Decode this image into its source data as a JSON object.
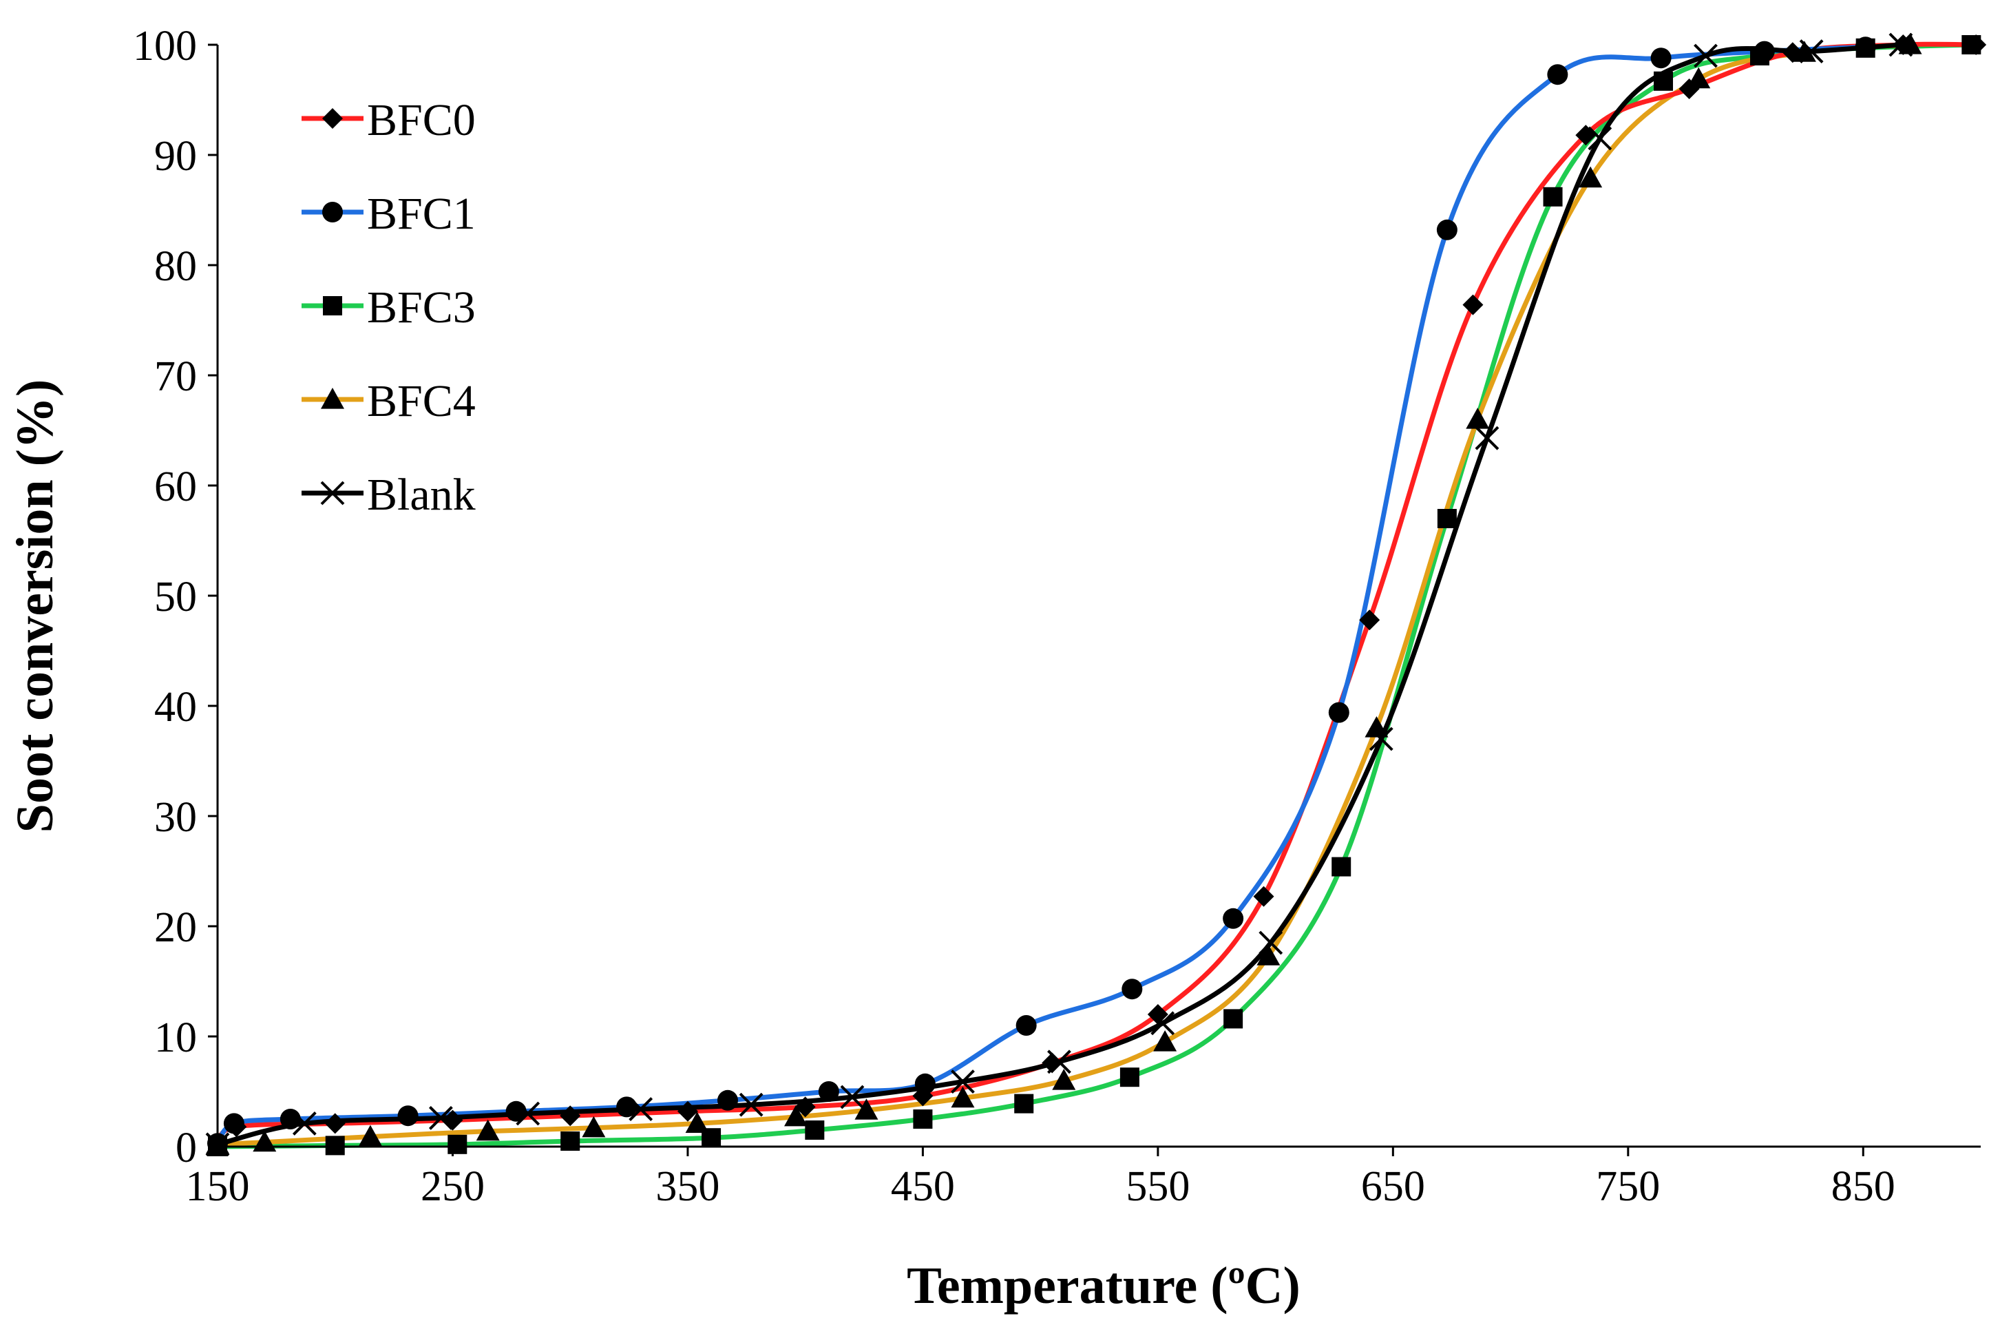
{
  "chart_data": {
    "type": "line",
    "title": "",
    "xlabel": "Temperature (ºC)",
    "ylabel": "Soot conversion (%)",
    "xlim": [
      150,
      900
    ],
    "ylim": [
      0,
      100
    ],
    "xticks": [
      150,
      250,
      350,
      450,
      550,
      650,
      750,
      850
    ],
    "yticks": [
      0,
      10,
      20,
      30,
      40,
      50,
      60,
      70,
      80,
      90,
      100
    ],
    "grid": false,
    "legend_position": "top-left",
    "series": [
      {
        "name": "BFC0",
        "color": "#ff2020",
        "marker": "diamond",
        "points": [
          [
            150,
            0.3
          ],
          [
            158,
            1.8
          ],
          [
            200,
            2.1
          ],
          [
            250,
            2.4
          ],
          [
            300,
            2.8
          ],
          [
            350,
            3.2
          ],
          [
            400,
            3.6
          ],
          [
            450,
            4.6
          ],
          [
            505,
            7.6
          ],
          [
            550,
            12.0
          ],
          [
            595,
            22.7
          ],
          [
            640,
            47.8
          ],
          [
            684,
            76.4
          ],
          [
            732,
            91.8
          ],
          [
            776,
            96.0
          ],
          [
            820,
            99.3
          ],
          [
            867,
            100.0
          ],
          [
            898,
            100.0
          ]
        ]
      },
      {
        "name": "BFC1",
        "color": "#1f6fe0",
        "marker": "circle",
        "points": [
          [
            150,
            0.3
          ],
          [
            157,
            2.1
          ],
          [
            181,
            2.5
          ],
          [
            231,
            2.8
          ],
          [
            277,
            3.2
          ],
          [
            324,
            3.6
          ],
          [
            367,
            4.2
          ],
          [
            410,
            5.0
          ],
          [
            451,
            5.7
          ],
          [
            494,
            11.0
          ],
          [
            539,
            14.3
          ],
          [
            582,
            20.7
          ],
          [
            627,
            39.4
          ],
          [
            673,
            83.2
          ],
          [
            720,
            97.3
          ],
          [
            764,
            98.8
          ],
          [
            808,
            99.4
          ],
          [
            851,
            99.8
          ]
        ]
      },
      {
        "name": "BFC3",
        "color": "#1fcc50",
        "marker": "square",
        "points": [
          [
            150,
            0.0
          ],
          [
            200,
            0.1
          ],
          [
            252,
            0.2
          ],
          [
            300,
            0.5
          ],
          [
            360,
            0.8
          ],
          [
            404,
            1.5
          ],
          [
            450,
            2.5
          ],
          [
            493,
            3.9
          ],
          [
            538,
            6.3
          ],
          [
            582,
            11.6
          ],
          [
            628,
            25.4
          ],
          [
            673,
            57.0
          ],
          [
            718,
            86.2
          ],
          [
            765,
            96.7
          ],
          [
            806,
            99.0
          ],
          [
            851,
            99.7
          ],
          [
            896,
            100.0
          ]
        ]
      },
      {
        "name": "BFC4",
        "color": "#e3a018",
        "marker": "triangle",
        "points": [
          [
            150,
            0.2
          ],
          [
            170,
            0.4
          ],
          [
            215,
            0.9
          ],
          [
            265,
            1.4
          ],
          [
            310,
            1.7
          ],
          [
            354,
            2.1
          ],
          [
            396,
            2.7
          ],
          [
            426,
            3.3
          ],
          [
            467,
            4.4
          ],
          [
            510,
            6.0
          ],
          [
            553,
            9.5
          ],
          [
            597,
            17.3
          ],
          [
            643,
            38.0
          ],
          [
            686,
            66.0
          ],
          [
            734,
            87.9
          ],
          [
            780,
            96.9
          ],
          [
            825,
            99.3
          ],
          [
            870,
            100.0
          ]
        ]
      },
      {
        "name": "Blank",
        "color": "#000000",
        "marker": "x",
        "points": [
          [
            150,
            0.2
          ],
          [
            187,
            2.1
          ],
          [
            245,
            2.6
          ],
          [
            282,
            3.0
          ],
          [
            330,
            3.4
          ],
          [
            377,
            3.8
          ],
          [
            420,
            4.5
          ],
          [
            467,
            5.9
          ],
          [
            508,
            7.7
          ],
          [
            552,
            11.2
          ],
          [
            598,
            18.5
          ],
          [
            645,
            37.0
          ],
          [
            690,
            64.3
          ],
          [
            738,
            91.5
          ],
          [
            783,
            99.0
          ],
          [
            828,
            99.4
          ],
          [
            866,
            100.0
          ]
        ]
      }
    ]
  }
}
